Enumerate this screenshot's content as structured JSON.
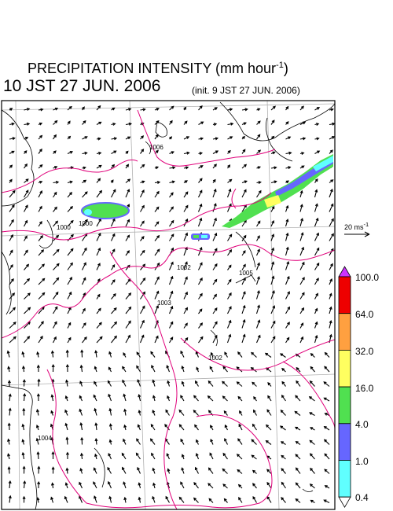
{
  "title": {
    "text": "PRECIPITATION INTENSITY (mm hour",
    "exponent": "-1",
    "close": ")"
  },
  "valid_time": "10 JST 27 JUN. 2006",
  "init_time": "(init. 9 JST 27 JUN. 2006)",
  "reference_vector": {
    "base": "20 ms",
    "exponent": "-1"
  },
  "legend": {
    "levels": [
      "100.0",
      "64.0",
      "32.0",
      "16.0",
      "4.0",
      "1.0",
      "0.4"
    ],
    "colors": [
      "#cc33ff",
      "#ee0000",
      "#ffa040",
      "#ffff60",
      "#50e050",
      "#6666ff",
      "#60ffff",
      "#ffffff"
    ]
  },
  "pressure_labels": [
    "1000",
    "1000",
    "1002",
    "1003",
    "1002",
    "1004",
    "1006",
    "1005",
    "1003",
    "1001"
  ],
  "colors": {
    "isobar": "#e0007a",
    "coast": "#000000",
    "grid": "#b0b0b0",
    "rain_green": "#50e050",
    "rain_blue": "#6666ff",
    "rain_cyan": "#60ffff"
  }
}
